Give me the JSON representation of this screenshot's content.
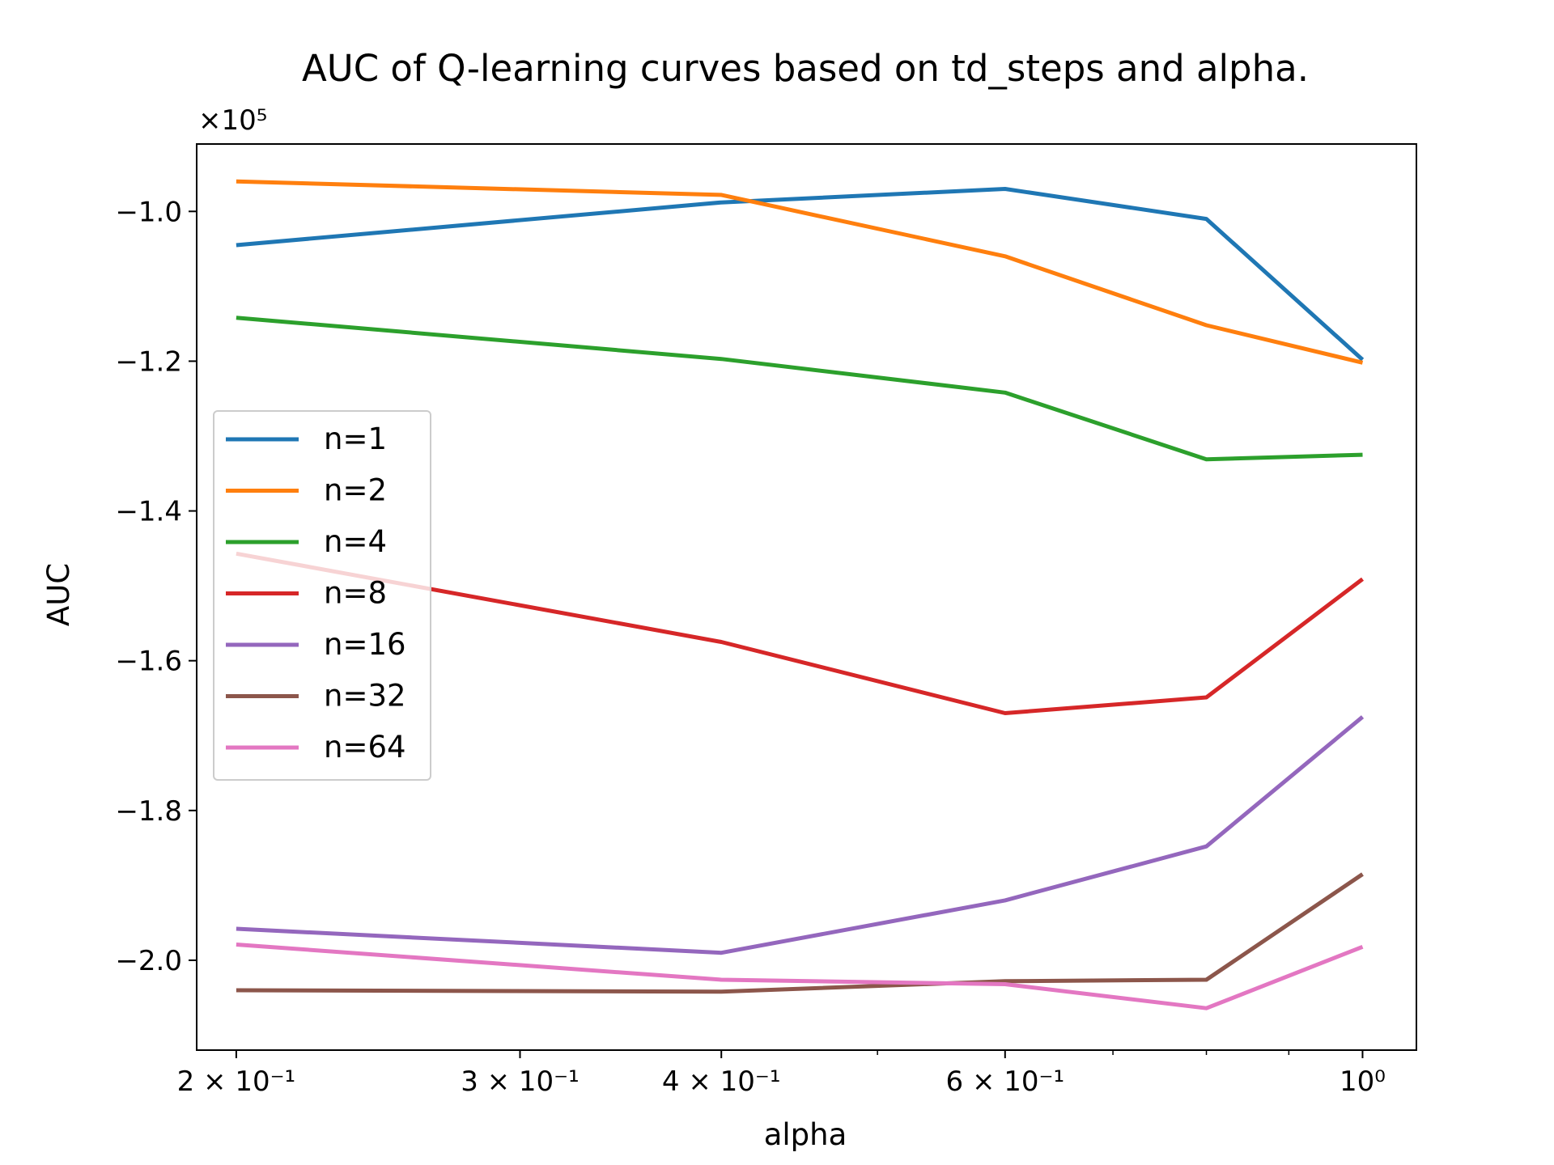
{
  "chart_data": {
    "type": "line",
    "title": "AUC of Q-learning curves based on td_steps and alpha.",
    "xlabel": "alpha",
    "ylabel": "AUC",
    "xscale": "log",
    "xlim": [
      0.189,
      1.08
    ],
    "ylim": [
      -212000,
      -91000
    ],
    "offset_text": "×10⁵",
    "x": [
      0.2,
      0.4,
      0.6,
      0.8,
      1.0
    ],
    "x_major_ticks": [
      {
        "value": 0.2,
        "label": "2 × 10⁻¹"
      },
      {
        "value": 0.3,
        "label": "3 × 10⁻¹"
      },
      {
        "value": 0.4,
        "label": "4 × 10⁻¹"
      },
      {
        "value": 0.6,
        "label": "6 × 10⁻¹"
      },
      {
        "value": 1.0,
        "label": "10⁰"
      }
    ],
    "x_minor_ticks": [
      0.5,
      0.7,
      0.8,
      0.9
    ],
    "y_ticks": [
      {
        "value": -100000,
        "label": "−1.0"
      },
      {
        "value": -120000,
        "label": "−1.2"
      },
      {
        "value": -140000,
        "label": "−1.4"
      },
      {
        "value": -160000,
        "label": "−1.6"
      },
      {
        "value": -180000,
        "label": "−1.8"
      },
      {
        "value": -200000,
        "label": "−2.0"
      }
    ],
    "legend_position": "center-left",
    "grid": false,
    "series": [
      {
        "name": "n=1",
        "color": "#1f77b4",
        "values": [
          -104500,
          -98800,
          -97000,
          -101000,
          -119800
        ]
      },
      {
        "name": "n=2",
        "color": "#ff7f0e",
        "values": [
          -96000,
          -97800,
          -106000,
          -115200,
          -120200
        ]
      },
      {
        "name": "n=4",
        "color": "#2ca02c",
        "values": [
          -114200,
          -119700,
          -124200,
          -133100,
          -132500
        ]
      },
      {
        "name": "n=8",
        "color": "#d62728",
        "values": [
          -145700,
          -157500,
          -167000,
          -164900,
          -149100
        ]
      },
      {
        "name": "n=16",
        "color": "#9467bd",
        "values": [
          -195800,
          -199000,
          -192000,
          -184800,
          -167500
        ]
      },
      {
        "name": "n=32",
        "color": "#8c564b",
        "values": [
          -204000,
          -204200,
          -202800,
          -202600,
          -188500
        ]
      },
      {
        "name": "n=64",
        "color": "#e377c2",
        "values": [
          -197900,
          -202600,
          -203200,
          -206400,
          -198200
        ]
      }
    ]
  }
}
